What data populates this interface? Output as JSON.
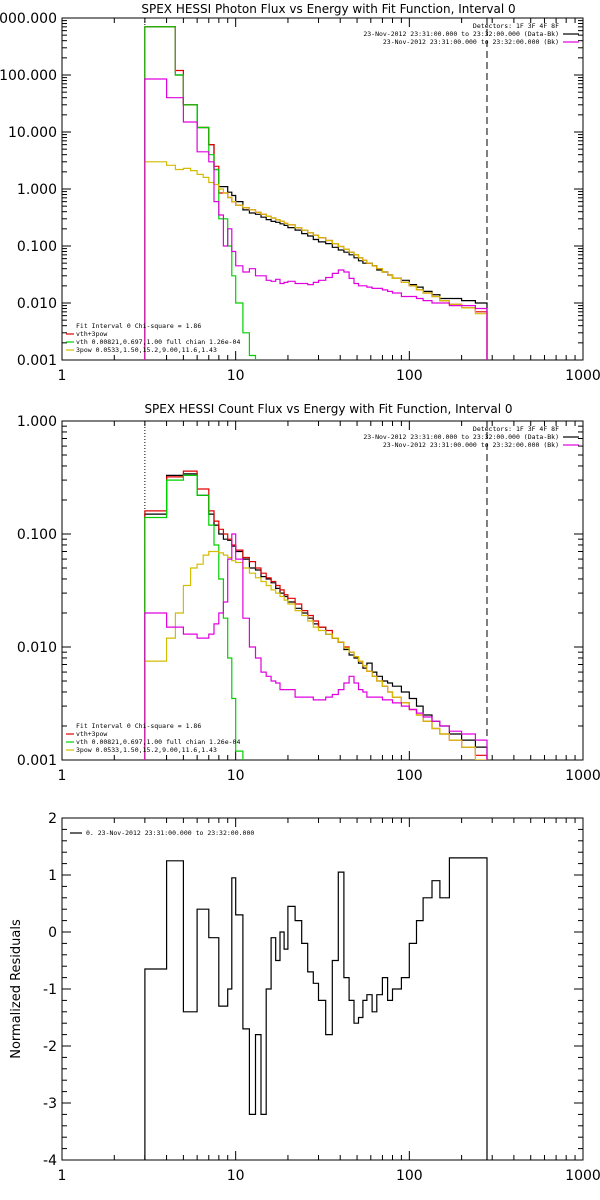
{
  "colors": {
    "black": "#000000",
    "red": "#e00000",
    "green": "#00d000",
    "magenta": "#e000e0",
    "yellow": "#d4bc00"
  },
  "chart_data": [
    {
      "type": "line",
      "title": "SPEX HESSI Photon Flux vs Energy with Fit Function, Interval 0",
      "xscale": "log",
      "yscale": "log",
      "xlim": [
        1,
        1000
      ],
      "ylim": [
        0.001,
        1000
      ],
      "xticks": [
        1,
        10,
        100,
        1000
      ],
      "xtick_labels": [
        "1",
        "10",
        "100",
        "1000"
      ],
      "yticks": [
        0.001,
        0.01,
        0.1,
        1,
        10,
        100,
        1000
      ],
      "ytick_labels": [
        "0.001",
        "0.010",
        "0.100",
        "1.000",
        "10.000",
        "100.000",
        "1000.000"
      ],
      "vlines": [
        {
          "x": 3,
          "style": "dotted"
        },
        {
          "x": 280,
          "style": "dashed"
        }
      ],
      "legend_top_right": [
        {
          "text": "Detectors: 1F 3F 4F 8F",
          "color": "#000000"
        },
        {
          "text": "23-Nov-2012 23:31:00.000 to 23:32:00.000 (Data-Bk)",
          "color": "#000000"
        },
        {
          "text": "23-Nov-2012 23:31:00.000 to 23:32:00.000 (Bk)",
          "color": "#e000e0"
        }
      ],
      "legend_bottom_left": [
        {
          "text": "Fit Interval 0   Chi-square = 1.86",
          "color": "#000000"
        },
        {
          "text": "vth+3pow",
          "color": "#e00000"
        },
        {
          "text": "vth 0.00821,0.697,1.00   full chian 1.26e-04",
          "color": "#00d000"
        },
        {
          "text": "3pow 0.0533,1.50,15.2,9.00,11.6,1.43",
          "color": "#d4bc00"
        }
      ],
      "edges": [
        3,
        3.5,
        4,
        4.5,
        5,
        5.5,
        6,
        6.5,
        7,
        7.5,
        8,
        8.5,
        9,
        9.5,
        10,
        11,
        12,
        13,
        14,
        15,
        16,
        17,
        18,
        19,
        20,
        22,
        24,
        26,
        28,
        30,
        33,
        36,
        39,
        42,
        45,
        48,
        51,
        54,
        57,
        61,
        65,
        70,
        75,
        80,
        90,
        100,
        110,
        120,
        135,
        150,
        170,
        200,
        240,
        280
      ],
      "series": [
        {
          "name": "Data-Bk",
          "color": "#000000",
          "values": [
            700,
            700,
            700,
            100,
            30,
            30,
            12,
            12,
            6,
            2.2,
            1.1,
            1.1,
            0.88,
            0.77,
            0.6,
            0.43,
            0.38,
            0.36,
            0.32,
            0.29,
            0.27,
            0.26,
            0.245,
            0.23,
            0.21,
            0.19,
            0.165,
            0.15,
            0.13,
            0.118,
            0.11,
            0.095,
            0.085,
            0.078,
            0.07,
            0.062,
            0.055,
            0.05,
            0.05,
            0.045,
            0.038,
            0.035,
            0.031,
            0.027,
            0.025,
            0.021,
            0.019,
            0.016,
            0.014,
            0.012,
            0.012,
            0.011,
            0.01
          ]
        },
        {
          "name": "vth+3pow",
          "color": "#e00000",
          "values": [
            700,
            700,
            700,
            120,
            30,
            30,
            12,
            12,
            6,
            2.5,
            0.85,
            0.85,
            0.71,
            0.6,
            0.52,
            0.47,
            0.43,
            0.39,
            0.36,
            0.33,
            0.31,
            0.29,
            0.27,
            0.25,
            0.235,
            0.21,
            0.19,
            0.17,
            0.155,
            0.14,
            0.125,
            0.11,
            0.098,
            0.087,
            0.078,
            0.07,
            0.062,
            0.056,
            0.05,
            0.045,
            0.04,
            0.035,
            0.031,
            0.027,
            0.023,
            0.02,
            0.017,
            0.015,
            0.013,
            0.011,
            0.0095,
            0.0082,
            0.007
          ]
        },
        {
          "name": "vth",
          "color": "#00d000",
          "values": [
            700,
            700,
            700,
            100,
            30,
            30,
            12,
            12,
            4,
            2.2,
            0.3,
            0.3,
            0.1,
            0.03,
            0.01,
            0.003,
            0.0012
          ]
        },
        {
          "name": "3pow",
          "color": "#d4bc00",
          "values": [
            3,
            3,
            2.6,
            2.2,
            2.3,
            2.1,
            1.8,
            1.6,
            1.3,
            1.2,
            1.0,
            0.85,
            0.71,
            0.6,
            0.52,
            0.47,
            0.43,
            0.39,
            0.36,
            0.33,
            0.31,
            0.29,
            0.27,
            0.25,
            0.235,
            0.21,
            0.19,
            0.17,
            0.155,
            0.14,
            0.125,
            0.11,
            0.098,
            0.087,
            0.078,
            0.07,
            0.062,
            0.056,
            0.05,
            0.045,
            0.04,
            0.035,
            0.031,
            0.027,
            0.023,
            0.02,
            0.017,
            0.015,
            0.013,
            0.011,
            0.0095,
            0.0082,
            0.0065
          ]
        },
        {
          "name": "Bk",
          "color": "#e000e0",
          "values": [
            85,
            85,
            40,
            40,
            15,
            15,
            4.5,
            4.5,
            3.0,
            0.6,
            0.35,
            0.1,
            0.2,
            0.08,
            0.045,
            0.035,
            0.04,
            0.03,
            0.03,
            0.025,
            0.024,
            0.026,
            0.022,
            0.023,
            0.024,
            0.022,
            0.022,
            0.021,
            0.023,
            0.025,
            0.028,
            0.033,
            0.038,
            0.035,
            0.027,
            0.022,
            0.02,
            0.02,
            0.019,
            0.018,
            0.018,
            0.017,
            0.016,
            0.015,
            0.013,
            0.013,
            0.012,
            0.011,
            0.01,
            0.01,
            0.009,
            0.009,
            0.008
          ]
        }
      ]
    },
    {
      "type": "line",
      "title": "SPEX HESSI Count Flux vs Energy with Fit Function, Interval 0",
      "xscale": "log",
      "yscale": "log",
      "xlim": [
        1,
        1000
      ],
      "ylim": [
        0.001,
        1
      ],
      "xticks": [
        1,
        10,
        100,
        1000
      ],
      "xtick_labels": [
        "1",
        "10",
        "100",
        "1000"
      ],
      "yticks": [
        0.001,
        0.01,
        0.1,
        1
      ],
      "ytick_labels": [
        "0.001",
        "0.010",
        "0.100",
        "1.000"
      ],
      "vlines": [
        {
          "x": 3,
          "style": "dotted"
        },
        {
          "x": 280,
          "style": "dashed"
        }
      ],
      "legend_top_right": [
        {
          "text": "Detectors: 1F 3F 4F 8F",
          "color": "#000000"
        },
        {
          "text": "23-Nov-2012 23:31:00.000 to 23:32:00.000 (Data-Bk)",
          "color": "#000000"
        },
        {
          "text": "23-Nov-2012 23:31:00.000 to 23:32:00.000 (Bk)",
          "color": "#e000e0"
        }
      ],
      "legend_bottom_left": [
        {
          "text": "Fit Interval 0   Chi-square = 1.86",
          "color": "#000000"
        },
        {
          "text": "vth+3pow",
          "color": "#e00000"
        },
        {
          "text": "vth 0.00821,0.697,1.00   full chian 1.26e-04",
          "color": "#00d000"
        },
        {
          "text": "3pow 0.0533,1.50,15.2,9.00,11.6,1.43",
          "color": "#d4bc00"
        }
      ],
      "edges": [
        3,
        3.5,
        4,
        4.5,
        5,
        5.5,
        6,
        6.5,
        7,
        7.5,
        8,
        8.5,
        9,
        9.5,
        10,
        11,
        12,
        13,
        14,
        15,
        16,
        17,
        18,
        19,
        20,
        22,
        24,
        26,
        28,
        30,
        33,
        36,
        39,
        42,
        45,
        48,
        51,
        54,
        57,
        61,
        65,
        70,
        75,
        80,
        90,
        100,
        110,
        120,
        135,
        150,
        170,
        200,
        240,
        280
      ],
      "series": [
        {
          "name": "Data-Bk",
          "color": "#000000",
          "values": [
            0.15,
            0.15,
            0.33,
            0.33,
            0.34,
            0.34,
            0.22,
            0.22,
            0.15,
            0.12,
            0.1,
            0.09,
            0.088,
            0.078,
            0.07,
            0.06,
            0.05,
            0.048,
            0.042,
            0.04,
            0.037,
            0.033,
            0.03,
            0.028,
            0.025,
            0.022,
            0.02,
            0.018,
            0.016,
            0.015,
            0.013,
            0.012,
            0.011,
            0.0095,
            0.0085,
            0.008,
            0.0072,
            0.0065,
            0.0072,
            0.006,
            0.0055,
            0.005,
            0.0048,
            0.0045,
            0.004,
            0.0035,
            0.003,
            0.0025,
            0.0022,
            0.002,
            0.0017,
            0.0015,
            0.0013
          ]
        },
        {
          "name": "vth+3pow",
          "color": "#e00000",
          "values": [
            0.16,
            0.16,
            0.32,
            0.32,
            0.36,
            0.36,
            0.25,
            0.25,
            0.16,
            0.13,
            0.11,
            0.1,
            0.09,
            0.08,
            0.072,
            0.062,
            0.057,
            0.05,
            0.045,
            0.041,
            0.038,
            0.035,
            0.032,
            0.029,
            0.027,
            0.024,
            0.021,
            0.019,
            0.017,
            0.015,
            0.014,
            0.012,
            0.011,
            0.01,
            0.009,
            0.0082,
            0.0075,
            0.0068,
            0.0061,
            0.0055,
            0.005,
            0.0045,
            0.004,
            0.0036,
            0.0032,
            0.0028,
            0.0025,
            0.0022,
            0.0019,
            0.0017,
            0.0015,
            0.0013,
            0.0011
          ]
        },
        {
          "name": "vth",
          "color": "#00d000",
          "values": [
            0.14,
            0.14,
            0.3,
            0.3,
            0.33,
            0.33,
            0.22,
            0.22,
            0.12,
            0.08,
            0.04,
            0.018,
            0.008,
            0.0035,
            0.0012
          ]
        },
        {
          "name": "3pow",
          "color": "#d4bc00",
          "values": [
            0.0075,
            0.0075,
            0.012,
            0.02,
            0.035,
            0.05,
            0.054,
            0.065,
            0.07,
            0.07,
            0.068,
            0.065,
            0.062,
            0.058,
            0.056,
            0.05,
            0.045,
            0.041,
            0.038,
            0.035,
            0.032,
            0.03,
            0.028,
            0.026,
            0.024,
            0.021,
            0.019,
            0.017,
            0.015,
            0.014,
            0.013,
            0.012,
            0.011,
            0.0098,
            0.009,
            0.0082,
            0.0075,
            0.0068,
            0.0061,
            0.0055,
            0.005,
            0.0045,
            0.004,
            0.0036,
            0.0032,
            0.0028,
            0.0025,
            0.0022,
            0.0019,
            0.0017,
            0.0015,
            0.0013,
            0.0009
          ]
        },
        {
          "name": "Bk",
          "color": "#e000e0",
          "values": [
            0.02,
            0.02,
            0.015,
            0.015,
            0.013,
            0.013,
            0.012,
            0.012,
            0.013,
            0.016,
            0.02,
            0.025,
            0.06,
            0.1,
            0.06,
            0.018,
            0.01,
            0.008,
            0.006,
            0.0055,
            0.005,
            0.0048,
            0.0042,
            0.0042,
            0.0042,
            0.0036,
            0.0036,
            0.0036,
            0.0034,
            0.0034,
            0.0036,
            0.0038,
            0.0042,
            0.0048,
            0.0055,
            0.0048,
            0.0042,
            0.004,
            0.0036,
            0.0036,
            0.0036,
            0.0034,
            0.0034,
            0.0032,
            0.003,
            0.0028,
            0.0026,
            0.0024,
            0.0022,
            0.002,
            0.0018,
            0.0017,
            0.0015
          ]
        }
      ]
    },
    {
      "type": "line",
      "title": "",
      "ylabel": "Normalized Residuals",
      "xscale": "log",
      "yscale": "linear",
      "xlim": [
        1,
        1000
      ],
      "ylim": [
        -4,
        2
      ],
      "xticks": [
        1,
        10,
        100,
        1000
      ],
      "xtick_labels": [
        "1",
        "10",
        "100",
        "1000"
      ],
      "yticks": [
        -4,
        -3,
        -2,
        -1,
        0,
        1,
        2
      ],
      "ytick_labels": [
        "-4",
        "-3",
        "-2",
        "-1",
        "0",
        "1",
        "2"
      ],
      "legend_top_left": [
        {
          "text": "0. 23-Nov-2012 23:31:00.000 to 23:32:00.000",
          "color": "#000000"
        }
      ],
      "edges": [
        3,
        4,
        4.5,
        5,
        5.5,
        6,
        6.5,
        7,
        7.5,
        8,
        8.5,
        9,
        9.5,
        10,
        11,
        12,
        13,
        14,
        15,
        16,
        17,
        18,
        19,
        20,
        22,
        24,
        26,
        28,
        30,
        33,
        36,
        39,
        42,
        45,
        48,
        51,
        54,
        57,
        61,
        65,
        70,
        75,
        80,
        90,
        100,
        110,
        120,
        135,
        150,
        170,
        200,
        240,
        280
      ],
      "series": [
        {
          "name": "0. 23-Nov-2012 23:31:00.000 to 23:32:00.000",
          "color": "#000000",
          "values": [
            -0.65,
            1.25,
            1.25,
            -1.4,
            -1.4,
            0.4,
            0.4,
            -0.1,
            -0.1,
            -1.3,
            -1.3,
            -1.0,
            0.95,
            0.3,
            -1.7,
            -3.2,
            -1.8,
            -3.2,
            -1.0,
            -0.1,
            -0.5,
            0.0,
            -0.3,
            0.45,
            0.2,
            -0.2,
            -0.7,
            -0.9,
            -1.2,
            -1.8,
            -0.5,
            1.05,
            -0.8,
            -1.2,
            -1.6,
            -1.5,
            -1.2,
            -1.1,
            -1.4,
            -1.1,
            -0.8,
            -1.2,
            -1.0,
            -0.8,
            -0.2,
            0.2,
            0.6,
            0.9,
            0.6,
            1.3,
            1.3,
            1.3
          ]
        }
      ]
    }
  ]
}
